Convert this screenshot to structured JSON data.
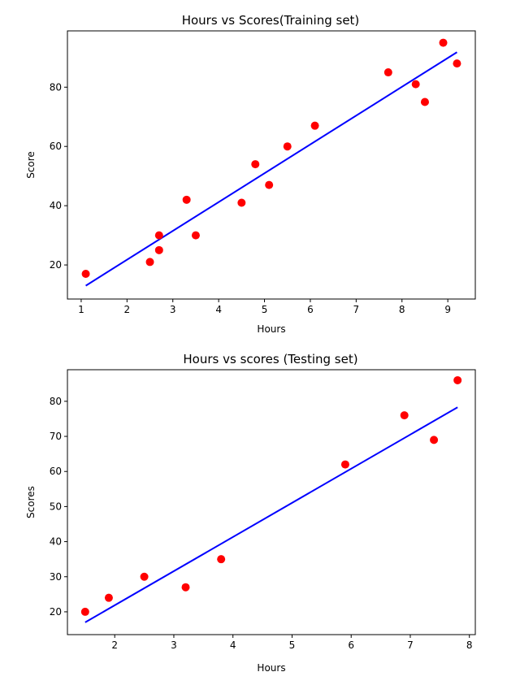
{
  "chart_data": [
    {
      "type": "scatter",
      "title": "Hours vs Scores(Training set)",
      "xlabel": "Hours",
      "ylabel": "Score",
      "xlim": [
        0.7,
        9.6
      ],
      "ylim": [
        8.5,
        99
      ],
      "xticks": [
        1,
        2,
        3,
        4,
        5,
        6,
        7,
        8,
        9
      ],
      "yticks": [
        20,
        40,
        60,
        80
      ],
      "points": {
        "color": "#ff0000",
        "x": [
          1.1,
          2.5,
          2.7,
          2.7,
          3.3,
          3.5,
          4.5,
          4.8,
          5.1,
          5.5,
          6.1,
          7.7,
          8.3,
          8.5,
          8.9,
          9.2
        ],
        "y": [
          17,
          21,
          25,
          30,
          42,
          30,
          41,
          54,
          47,
          60,
          67,
          85,
          81,
          75,
          95,
          88
        ]
      },
      "line": {
        "color": "#0000ff",
        "x": [
          1.1,
          9.2
        ],
        "y": [
          13,
          91.8
        ]
      }
    },
    {
      "type": "scatter",
      "title": "Hours vs scores (Testing set)",
      "xlabel": "Hours",
      "ylabel": "Scores",
      "xlim": [
        1.2,
        8.1
      ],
      "ylim": [
        13.5,
        89
      ],
      "xticks": [
        2,
        3,
        4,
        5,
        6,
        7,
        8
      ],
      "yticks": [
        20,
        30,
        40,
        50,
        60,
        70,
        80
      ],
      "points": {
        "color": "#ff0000",
        "x": [
          1.5,
          1.9,
          2.5,
          3.2,
          3.8,
          5.9,
          6.9,
          7.4,
          7.8
        ],
        "y": [
          20,
          24,
          30,
          27,
          35,
          62,
          76,
          69,
          86
        ]
      },
      "line": {
        "color": "#0000ff",
        "x": [
          1.5,
          7.8
        ],
        "y": [
          17,
          78.3
        ]
      }
    }
  ]
}
